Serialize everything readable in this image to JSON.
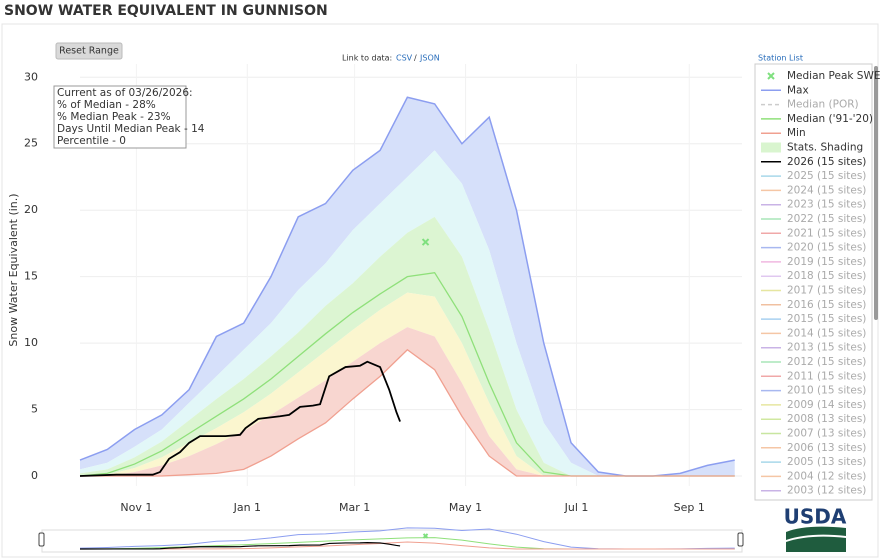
{
  "chart_data": {
    "type": "line",
    "title": "SNOW WATER EQUIVALENT IN GUNNISON",
    "y_label": "Snow Water Equivalent (in.)",
    "reset_button": "Reset Range",
    "link_label": "Link to data:",
    "link_csv": "CSV",
    "link_sep": "/",
    "link_json": "JSON",
    "station_list": "Station List",
    "logo_text": "USDA",
    "annotation": [
      "Current as of 03/26/2026:",
      "% of Median - 28%",
      "% Median Peak - 23%",
      "Days Until Median Peak - 14",
      "Percentile - 0"
    ],
    "xlim": [
      0,
      364
    ],
    "xticks": [
      {
        "value": 31,
        "label": "Nov  1"
      },
      {
        "value": 92,
        "label": "Jan  1"
      },
      {
        "value": 151,
        "label": "Mar  1"
      },
      {
        "value": 212,
        "label": "May  1"
      },
      {
        "value": 273,
        "label": "Jul  1"
      },
      {
        "value": 335,
        "label": "Sep  1"
      }
    ],
    "ylim": [
      -0.75,
      31
    ],
    "yticks": [
      0,
      5,
      10,
      15,
      20,
      25,
      30
    ],
    "grid": true,
    "x": [
      0,
      15,
      30,
      45,
      60,
      75,
      90,
      105,
      120,
      135,
      150,
      165,
      180,
      195,
      210,
      225,
      240,
      255,
      270,
      285,
      300,
      315,
      330,
      345,
      360
    ],
    "series": [
      {
        "name": "Max",
        "color": "#8c9ef0",
        "values": [
          1.2,
          2.0,
          3.5,
          4.6,
          6.5,
          10.5,
          11.5,
          15.0,
          19.5,
          20.5,
          23.0,
          24.5,
          28.5,
          28.0,
          25.0,
          27.0,
          20.0,
          10.0,
          2.5,
          0.3,
          0,
          0,
          0.2,
          0.8,
          1.2
        ]
      },
      {
        "name": "Median ('91-'20)",
        "color": "#8fe07a",
        "values": [
          0,
          0.2,
          0.9,
          1.9,
          3.2,
          4.5,
          5.8,
          7.3,
          9.0,
          10.7,
          12.3,
          13.7,
          15.0,
          15.3,
          12.0,
          7.0,
          2.5,
          0.3,
          0,
          0,
          0,
          0,
          0,
          0,
          0
        ]
      },
      {
        "name": "Min",
        "color": "#f0a090",
        "values": [
          0,
          0,
          0,
          0,
          0.1,
          0.2,
          0.5,
          1.5,
          2.8,
          4.0,
          5.8,
          7.5,
          9.5,
          8.0,
          4.5,
          1.5,
          0,
          0,
          0,
          0,
          0,
          0,
          0,
          0,
          0
        ]
      },
      {
        "name": "2026 (15 sites)",
        "color": "#000000",
        "x": [
          0,
          20,
          40,
          44,
          49,
          55,
          60,
          66,
          80,
          88,
          91,
          98,
          110,
          115,
          121,
          128,
          132,
          137,
          146,
          154,
          158,
          165,
          170,
          174,
          176
        ],
        "values": [
          0,
          0.1,
          0.1,
          0.3,
          1.3,
          1.8,
          2.5,
          3.0,
          3.0,
          3.1,
          3.6,
          4.3,
          4.5,
          4.6,
          5.2,
          5.3,
          5.4,
          7.5,
          8.2,
          8.3,
          8.6,
          8.2,
          6.5,
          4.8,
          4.1
        ]
      }
    ],
    "shading": {
      "name": "Stats. Shading",
      "color": "#d9f5cf",
      "levels": [
        {
          "values": [
            0.5,
            1.0,
            2.2,
            3.5,
            5.5,
            7.5,
            9.5,
            11.5,
            14.0,
            16.0,
            18.5,
            20.5,
            22.5,
            24.5,
            22.0,
            17.0,
            10.0,
            4.0,
            1.0,
            0,
            0,
            0,
            0,
            0,
            0
          ]
        },
        {
          "values": [
            0.2,
            0.5,
            1.4,
            2.6,
            4.2,
            5.8,
            7.3,
            9.0,
            10.8,
            12.8,
            14.5,
            16.5,
            18.3,
            19.5,
            16.5,
            11.0,
            5.0,
            1.0,
            0,
            0,
            0,
            0,
            0,
            0,
            0
          ]
        },
        {
          "values": [
            0,
            0.1,
            0.6,
            1.4,
            2.5,
            3.6,
            4.8,
            6.2,
            7.8,
            9.4,
            11.0,
            12.5,
            13.8,
            13.5,
            10.0,
            5.5,
            1.5,
            0,
            0,
            0,
            0,
            0,
            0,
            0,
            0
          ]
        },
        {
          "values": [
            0,
            0,
            0.3,
            0.8,
            1.5,
            2.4,
            3.4,
            4.6,
            5.9,
            7.2,
            8.6,
            10.0,
            11.2,
            10.5,
            7.0,
            3.0,
            0.5,
            0,
            0,
            0,
            0,
            0,
            0,
            0,
            0
          ]
        }
      ],
      "band_colors": [
        "#d6e0fa",
        "#e2f7f8",
        "#dcf5d2",
        "#fbf6cf",
        "#f8d6d0"
      ]
    },
    "peak": {
      "name": "Median Peak SWE",
      "color": "#7fe07f",
      "x": 190,
      "y": 17.6
    },
    "hidden_series": [
      {
        "name": "Median (POR)",
        "color": "#cccccc"
      },
      {
        "name": "2025 (15 sites)",
        "color": "#a8d8ea"
      },
      {
        "name": "2024 (15 sites)",
        "color": "#f5c6a5"
      },
      {
        "name": "2023 (15 sites)",
        "color": "#c9b3e6"
      },
      {
        "name": "2022 (15 sites)",
        "color": "#a8e6b8"
      },
      {
        "name": "2021 (15 sites)",
        "color": "#f0a8a8"
      },
      {
        "name": "2020 (15 sites)",
        "color": "#a8b8f0"
      },
      {
        "name": "2019 (15 sites)",
        "color": "#f0b8e0"
      },
      {
        "name": "2018 (15 sites)",
        "color": "#e0c8f0"
      },
      {
        "name": "2017 (15 sites)",
        "color": "#e6e6a0"
      },
      {
        "name": "2016 (15 sites)",
        "color": "#f0c0a0"
      },
      {
        "name": "2015 (15 sites)",
        "color": "#a8d0f0"
      },
      {
        "name": "2014 (15 sites)",
        "color": "#f5c6a5"
      },
      {
        "name": "2013 (15 sites)",
        "color": "#c9b3e6"
      },
      {
        "name": "2012 (15 sites)",
        "color": "#a8e6b8"
      },
      {
        "name": "2011 (15 sites)",
        "color": "#f0a8a8"
      },
      {
        "name": "2010 (15 sites)",
        "color": "#a8b8f0"
      },
      {
        "name": "2009 (14 sites)",
        "color": "#e6e6a0"
      },
      {
        "name": "2008 (13 sites)",
        "color": "#d0e8a0"
      },
      {
        "name": "2007 (13 sites)",
        "color": "#c8e6a0"
      },
      {
        "name": "2006 (13 sites)",
        "color": "#f5c6a5"
      },
      {
        "name": "2005 (13 sites)",
        "color": "#a8d8ea"
      },
      {
        "name": "2004 (12 sites)",
        "color": "#f5c6a5"
      },
      {
        "name": "2003 (12 sites)",
        "color": "#c9b3e6"
      }
    ]
  }
}
